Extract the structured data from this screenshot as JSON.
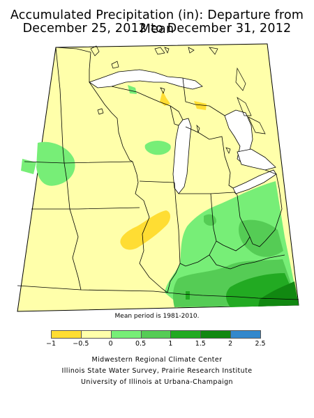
{
  "title": {
    "line1": "Accumulated Precipitation (in): Departure from Mean",
    "line2": "December 25, 2012 to December 31, 2012"
  },
  "map": {
    "region": "Midwest",
    "base_color": "#ffffaa",
    "background": "#ffffff",
    "lake_color": "#ffffff",
    "boundary_color": "#000000"
  },
  "note": "Mean period is 1981-2010.",
  "legend": {
    "bins": [
      {
        "from": -1,
        "to": -0.5,
        "color": "#ffdd33"
      },
      {
        "from": -0.5,
        "to": 0,
        "color": "#ffffaa"
      },
      {
        "from": 0,
        "to": 0.5,
        "color": "#77ee77"
      },
      {
        "from": 0.5,
        "to": 1,
        "color": "#55cc55"
      },
      {
        "from": 1,
        "to": 1.5,
        "color": "#22aa22"
      },
      {
        "from": 1.5,
        "to": 2,
        "color": "#118811"
      },
      {
        "from": 2,
        "to": 2.5,
        "color": "#3388cc"
      }
    ],
    "ticks": [
      "−1",
      "−0.5",
      "0",
      "0.5",
      "1",
      "1.5",
      "2",
      "2.5"
    ]
  },
  "credits": [
    "Midwestern Regional Climate Center",
    "Illinois State Water Survey, Prairie Research Institute",
    "University of Illinois at Urbana-Champaign"
  ]
}
